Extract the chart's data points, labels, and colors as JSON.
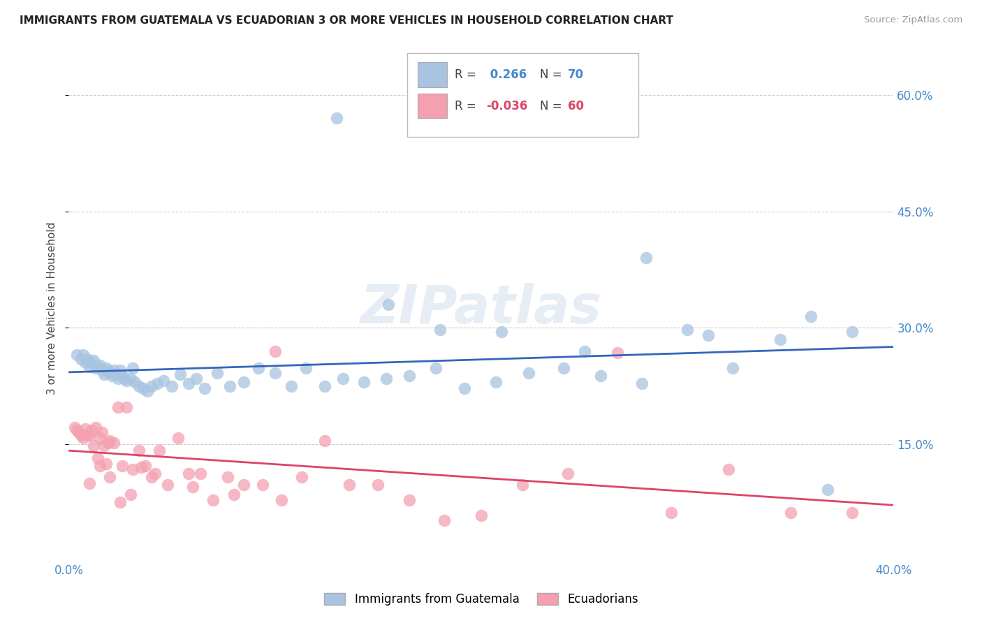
{
  "title": "IMMIGRANTS FROM GUATEMALA VS ECUADORIAN 3 OR MORE VEHICLES IN HOUSEHOLD CORRELATION CHART",
  "source": "Source: ZipAtlas.com",
  "ylabel": "3 or more Vehicles in Household",
  "xlim": [
    0.0,
    0.4
  ],
  "ylim": [
    0.0,
    0.65
  ],
  "yticks": [
    0.15,
    0.3,
    0.45,
    0.6
  ],
  "ytick_labels": [
    "15.0%",
    "30.0%",
    "45.0%",
    "60.0%"
  ],
  "xticks": [
    0.0,
    0.08,
    0.16,
    0.24,
    0.32,
    0.4
  ],
  "xtick_labels": [
    "0.0%",
    "",
    "",
    "",
    "",
    "40.0%"
  ],
  "blue_R": 0.266,
  "blue_N": 70,
  "pink_R": -0.036,
  "pink_N": 60,
  "blue_color": "#a8c4e0",
  "pink_color": "#f4a0b0",
  "blue_line_color": "#3366bb",
  "pink_line_color": "#dd4466",
  "legend_blue_label": "Immigrants from Guatemala",
  "legend_pink_label": "Ecuadorians",
  "watermark": "ZIPatlas",
  "tick_color": "#4488cc",
  "blue_scatter_x": [
    0.004,
    0.006,
    0.007,
    0.008,
    0.009,
    0.01,
    0.011,
    0.012,
    0.013,
    0.014,
    0.015,
    0.016,
    0.017,
    0.018,
    0.019,
    0.02,
    0.021,
    0.022,
    0.023,
    0.024,
    0.025,
    0.026,
    0.027,
    0.028,
    0.03,
    0.031,
    0.032,
    0.034,
    0.036,
    0.038,
    0.04,
    0.043,
    0.046,
    0.05,
    0.054,
    0.058,
    0.062,
    0.066,
    0.072,
    0.078,
    0.085,
    0.092,
    0.1,
    0.108,
    0.115,
    0.124,
    0.133,
    0.143,
    0.154,
    0.165,
    0.178,
    0.192,
    0.207,
    0.223,
    0.24,
    0.258,
    0.278,
    0.3,
    0.322,
    0.345,
    0.368,
    0.155,
    0.18,
    0.21,
    0.25,
    0.31,
    0.36,
    0.38,
    0.13,
    0.28
  ],
  "blue_scatter_y": [
    0.265,
    0.26,
    0.265,
    0.255,
    0.26,
    0.25,
    0.255,
    0.258,
    0.248,
    0.25,
    0.252,
    0.245,
    0.24,
    0.248,
    0.245,
    0.242,
    0.238,
    0.245,
    0.24,
    0.235,
    0.245,
    0.238,
    0.235,
    0.232,
    0.235,
    0.248,
    0.23,
    0.225,
    0.222,
    0.218,
    0.225,
    0.228,
    0.232,
    0.225,
    0.24,
    0.228,
    0.235,
    0.222,
    0.242,
    0.225,
    0.23,
    0.248,
    0.242,
    0.225,
    0.248,
    0.225,
    0.235,
    0.23,
    0.235,
    0.238,
    0.248,
    0.222,
    0.23,
    0.242,
    0.248,
    0.238,
    0.228,
    0.298,
    0.248,
    0.285,
    0.092,
    0.33,
    0.298,
    0.295,
    0.27,
    0.29,
    0.315,
    0.295,
    0.57,
    0.39
  ],
  "pink_scatter_x": [
    0.003,
    0.004,
    0.005,
    0.006,
    0.007,
    0.008,
    0.009,
    0.01,
    0.011,
    0.012,
    0.013,
    0.014,
    0.015,
    0.016,
    0.017,
    0.018,
    0.019,
    0.02,
    0.022,
    0.024,
    0.026,
    0.028,
    0.031,
    0.034,
    0.037,
    0.04,
    0.044,
    0.048,
    0.053,
    0.058,
    0.064,
    0.07,
    0.077,
    0.085,
    0.094,
    0.103,
    0.113,
    0.124,
    0.136,
    0.15,
    0.165,
    0.182,
    0.2,
    0.22,
    0.242,
    0.266,
    0.292,
    0.32,
    0.35,
    0.38,
    0.01,
    0.015,
    0.02,
    0.025,
    0.03,
    0.035,
    0.042,
    0.06,
    0.08,
    0.1
  ],
  "pink_scatter_y": [
    0.172,
    0.168,
    0.165,
    0.162,
    0.158,
    0.17,
    0.162,
    0.162,
    0.168,
    0.148,
    0.172,
    0.132,
    0.158,
    0.165,
    0.148,
    0.125,
    0.152,
    0.155,
    0.152,
    0.198,
    0.122,
    0.198,
    0.118,
    0.142,
    0.122,
    0.108,
    0.142,
    0.098,
    0.158,
    0.112,
    0.112,
    0.078,
    0.108,
    0.098,
    0.098,
    0.078,
    0.108,
    0.155,
    0.098,
    0.098,
    0.078,
    0.052,
    0.058,
    0.098,
    0.112,
    0.268,
    0.062,
    0.118,
    0.062,
    0.062,
    0.1,
    0.122,
    0.108,
    0.075,
    0.085,
    0.12,
    0.112,
    0.095,
    0.085,
    0.27
  ]
}
